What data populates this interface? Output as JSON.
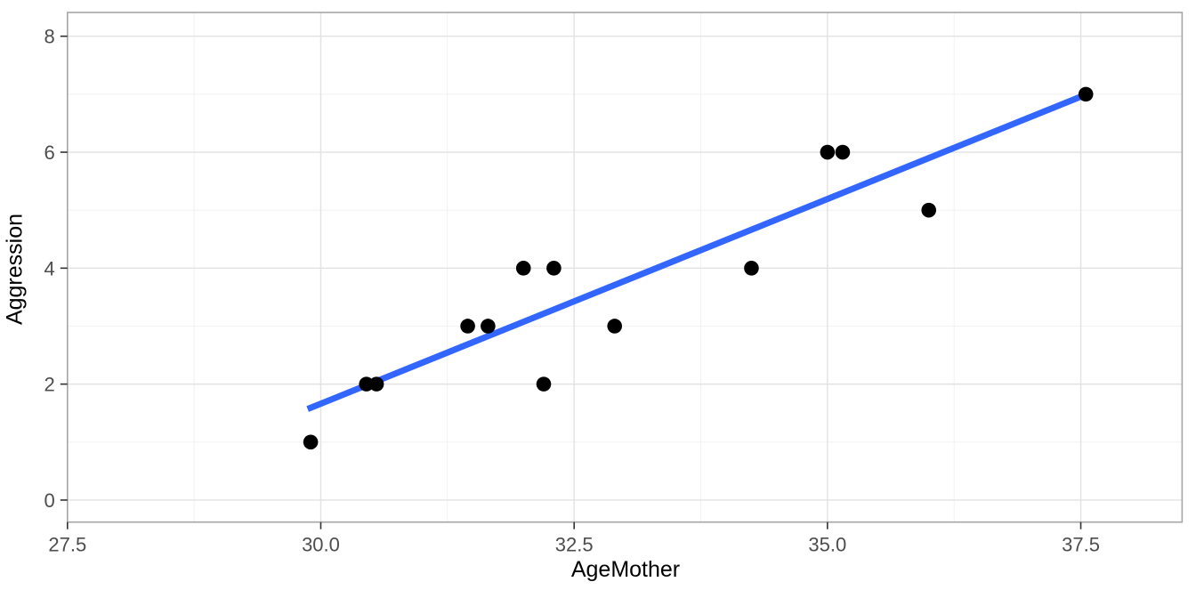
{
  "chart_data": {
    "type": "scatter",
    "title": "",
    "xlabel": "AgeMother",
    "ylabel": "Aggression",
    "x_ticks": [
      27.5,
      30.0,
      32.5,
      35.0,
      37.5
    ],
    "x_tick_labels": [
      "27.5",
      "30.0",
      "32.5",
      "35.0",
      "37.5"
    ],
    "x_minor_ticks": [
      28.75,
      31.25,
      33.75,
      36.25
    ],
    "y_ticks": [
      0,
      2,
      4,
      6,
      8
    ],
    "y_tick_labels": [
      "0",
      "2",
      "4",
      "6",
      "8"
    ],
    "y_minor_ticks": [
      1,
      3,
      5,
      7
    ],
    "xlim": [
      27.5,
      38.5
    ],
    "ylim": [
      -0.38,
      8.41
    ],
    "grid": "major-and-minor",
    "legend": "none",
    "points": [
      {
        "x": 29.9,
        "y": 1
      },
      {
        "x": 30.45,
        "y": 2
      },
      {
        "x": 30.55,
        "y": 2
      },
      {
        "x": 31.45,
        "y": 3
      },
      {
        "x": 31.65,
        "y": 3
      },
      {
        "x": 32.0,
        "y": 4
      },
      {
        "x": 32.2,
        "y": 2
      },
      {
        "x": 32.3,
        "y": 4
      },
      {
        "x": 32.9,
        "y": 3
      },
      {
        "x": 34.25,
        "y": 4
      },
      {
        "x": 35.0,
        "y": 6
      },
      {
        "x": 35.15,
        "y": 6
      },
      {
        "x": 36.0,
        "y": 5
      },
      {
        "x": 37.55,
        "y": 7
      }
    ],
    "regression_line": {
      "x1": 29.87,
      "y1": 1.57,
      "x2": 37.56,
      "y2": 7.0
    },
    "colors": {
      "point": "#000000",
      "line": "#3366FF",
      "grid_major": "#E2E2E2",
      "grid_minor": "#F0F0F0",
      "panel_border": "#A6A6A6",
      "tick_mark": "#333333",
      "tick_label": "#4D4D4D",
      "axis_title": "#000000",
      "background": "#FFFFFF"
    }
  }
}
